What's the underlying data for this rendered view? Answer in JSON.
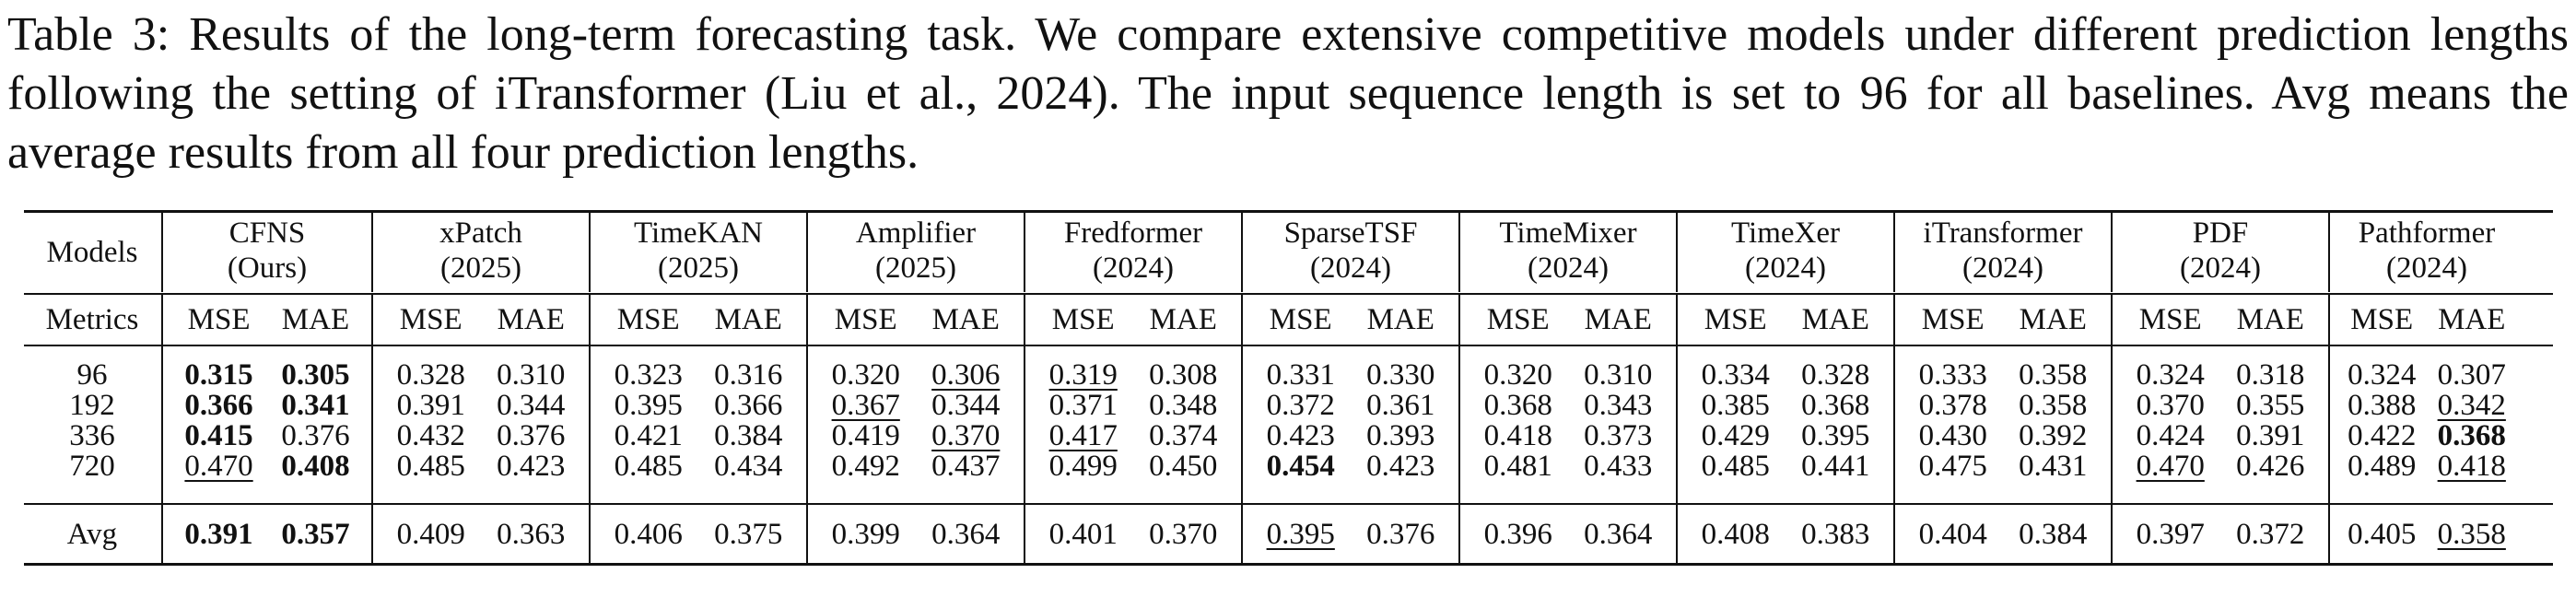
{
  "caption": "Table 3: Results of the long-term forecasting task. We compare extensive competitive models under different prediction lengths following the setting of iTransformer (Liu et al., 2024). The input sequence length is set to 96 for all baselines. Avg means the average results from all four prediction lengths.",
  "table": {
    "models_label": "Models",
    "metrics_label": "Metrics",
    "metric_names": [
      "MSE",
      "MAE"
    ],
    "models": [
      {
        "name": "CFNS",
        "sub": "(Ours)"
      },
      {
        "name": "xPatch",
        "sub": "(2025)"
      },
      {
        "name": "TimeKAN",
        "sub": "(2025)"
      },
      {
        "name": "Amplifier",
        "sub": "(2025)"
      },
      {
        "name": "Fredformer",
        "sub": "(2024)"
      },
      {
        "name": "SparseTSF",
        "sub": "(2024)"
      },
      {
        "name": "TimeMixer",
        "sub": "(2024)"
      },
      {
        "name": "TimeXer",
        "sub": "(2024)"
      },
      {
        "name": "iTransformer",
        "sub": "(2024)"
      },
      {
        "name": "PDF",
        "sub": "(2024)"
      },
      {
        "name": "Pathformer",
        "sub": "(2024)"
      }
    ],
    "rows": [
      {
        "label": "96",
        "values": [
          "0.315",
          "0.305",
          "0.328",
          "0.310",
          "0.323",
          "0.316",
          "0.320",
          "0.306",
          "0.319",
          "0.308",
          "0.331",
          "0.330",
          "0.320",
          "0.310",
          "0.334",
          "0.328",
          "0.333",
          "0.358",
          "0.324",
          "0.318",
          "0.324",
          "0.307"
        ]
      },
      {
        "label": "192",
        "values": [
          "0.366",
          "0.341",
          "0.391",
          "0.344",
          "0.395",
          "0.366",
          "0.367",
          "0.344",
          "0.371",
          "0.348",
          "0.372",
          "0.361",
          "0.368",
          "0.343",
          "0.385",
          "0.368",
          "0.378",
          "0.358",
          "0.370",
          "0.355",
          "0.388",
          "0.342"
        ]
      },
      {
        "label": "336",
        "values": [
          "0.415",
          "0.376",
          "0.432",
          "0.376",
          "0.421",
          "0.384",
          "0.419",
          "0.370",
          "0.417",
          "0.374",
          "0.423",
          "0.393",
          "0.418",
          "0.373",
          "0.429",
          "0.395",
          "0.430",
          "0.392",
          "0.424",
          "0.391",
          "0.422",
          "0.368"
        ]
      },
      {
        "label": "720",
        "values": [
          "0.470",
          "0.408",
          "0.485",
          "0.423",
          "0.485",
          "0.434",
          "0.492",
          "0.437",
          "0.499",
          "0.450",
          "0.454",
          "0.423",
          "0.481",
          "0.433",
          "0.485",
          "0.441",
          "0.475",
          "0.431",
          "0.470",
          "0.426",
          "0.489",
          "0.418"
        ]
      }
    ],
    "avg_row": {
      "label": "Avg",
      "values": [
        "0.391",
        "0.357",
        "0.409",
        "0.363",
        "0.406",
        "0.375",
        "0.399",
        "0.364",
        "0.401",
        "0.370",
        "0.395",
        "0.376",
        "0.396",
        "0.364",
        "0.408",
        "0.383",
        "0.404",
        "0.384",
        "0.397",
        "0.372",
        "0.405",
        "0.358"
      ]
    },
    "bold": {
      "0": [
        0,
        1
      ],
      "1": [
        0,
        1
      ],
      "2": [
        0,
        21
      ],
      "3": [
        1,
        10
      ],
      "avg": [
        0,
        1
      ]
    },
    "underline": {
      "0": [
        7,
        8
      ],
      "1": [
        6,
        21
      ],
      "2": [
        7,
        8
      ],
      "3": [
        0,
        18,
        21
      ],
      "avg": [
        10,
        21
      ]
    }
  }
}
